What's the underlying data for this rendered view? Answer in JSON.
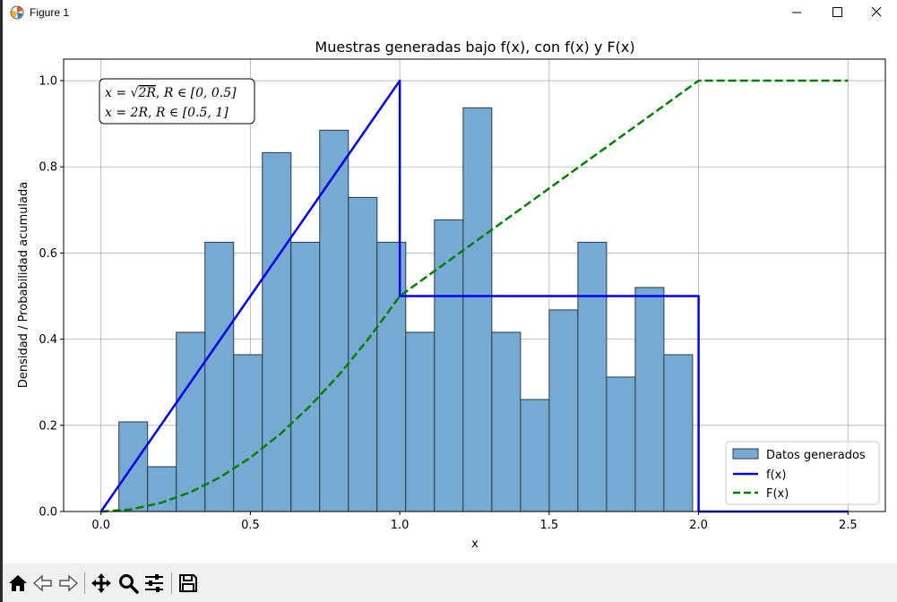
{
  "window": {
    "title": "Figure 1"
  },
  "toolbar": {
    "buttons": [
      {
        "name": "home-button",
        "icon": "home-icon"
      },
      {
        "name": "back-button",
        "icon": "arrow-left-icon"
      },
      {
        "name": "forward-button",
        "icon": "arrow-right-icon"
      },
      {
        "name": "pan-button",
        "icon": "move-icon"
      },
      {
        "name": "zoom-button",
        "icon": "magnifier-icon"
      },
      {
        "name": "configure-subplots-button",
        "icon": "sliders-icon"
      },
      {
        "name": "save-button",
        "icon": "floppy-disk-icon"
      }
    ]
  },
  "chart_data": {
    "type": "bar",
    "title": "Muestras generadas bajo f(x), con f(x) y F(x)",
    "xlabel": "x",
    "ylabel": "Densidad / Probabilidad acumulada",
    "xlim": [
      -0.125,
      2.625
    ],
    "ylim": [
      0.0,
      1.05
    ],
    "xticks": [
      "0.0",
      "0.5",
      "1.0",
      "1.5",
      "2.0",
      "2.5"
    ],
    "xtick_values": [
      0.0,
      0.5,
      1.0,
      1.5,
      2.0,
      2.5
    ],
    "yticks": [
      "0.0",
      "0.2",
      "0.4",
      "0.6",
      "0.8",
      "1.0"
    ],
    "ytick_values": [
      0.0,
      0.2,
      0.4,
      0.6,
      0.8,
      1.0
    ],
    "grid": true,
    "legend_position": "lower-right",
    "annotation": {
      "line1": {
        "lhs": "x",
        "rhs": "2R",
        "cond": "R ∈ [0,  0.5]"
      },
      "line2": {
        "lhs": "x",
        "rhs": "2R",
        "cond": "R ∈ [0.5,  1]"
      }
    },
    "histogram": {
      "name": "Datos generados",
      "color": "#77aad2",
      "edge_color": "#2b3a46",
      "bin_edges": [
        0.06,
        0.156,
        0.252,
        0.348,
        0.444,
        0.54,
        0.636,
        0.732,
        0.828,
        0.924,
        1.02,
        1.116,
        1.212,
        1.308,
        1.404,
        1.5,
        1.596,
        1.692,
        1.788,
        1.884,
        1.98
      ],
      "values": [
        0.208,
        0.104,
        0.416,
        0.625,
        0.364,
        0.833,
        0.625,
        0.885,
        0.729,
        0.625,
        0.416,
        0.677,
        0.937,
        0.416,
        0.26,
        0.468,
        0.625,
        0.312,
        0.52,
        0.364
      ]
    },
    "series": [
      {
        "name": "f(x)",
        "color": "#0000ee",
        "style": "solid",
        "x": [
          0.0,
          1.0,
          1.0,
          2.0,
          2.0,
          2.5
        ],
        "y": [
          0.0,
          1.0,
          0.5,
          0.5,
          0.0,
          0.0
        ]
      },
      {
        "name": "F(x)",
        "color": "#008000",
        "style": "dashed",
        "x": [
          0.0,
          0.1,
          0.2,
          0.3,
          0.4,
          0.5,
          0.6,
          0.7,
          0.8,
          0.9,
          1.0,
          1.25,
          1.5,
          1.75,
          2.0,
          2.5
        ],
        "y": [
          0.0,
          0.005,
          0.02,
          0.045,
          0.08,
          0.125,
          0.18,
          0.245,
          0.32,
          0.405,
          0.5,
          0.625,
          0.75,
          0.875,
          1.0,
          1.0
        ]
      }
    ]
  }
}
